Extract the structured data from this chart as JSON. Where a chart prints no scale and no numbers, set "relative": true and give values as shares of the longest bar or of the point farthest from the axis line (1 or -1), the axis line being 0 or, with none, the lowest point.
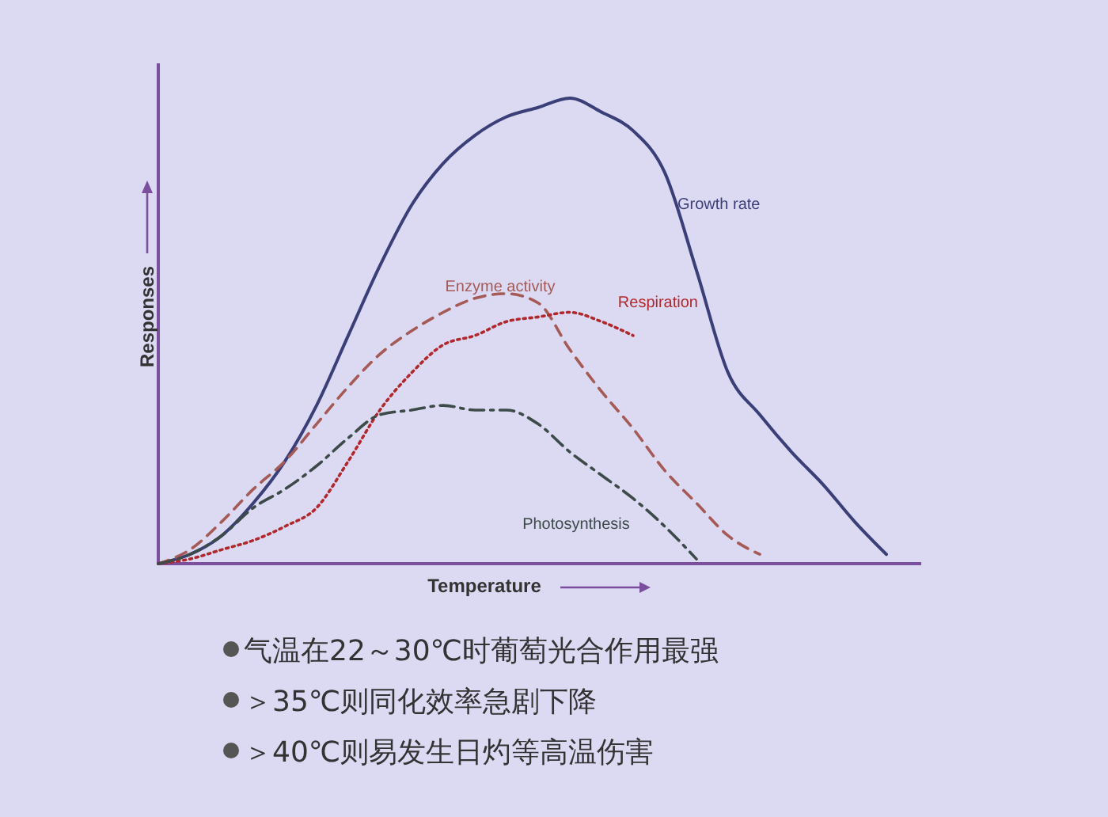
{
  "chart_data": {
    "type": "line",
    "relative": true,
    "xlabel": "Temperature",
    "ylabel": "Responses",
    "categories": [
      null,
      null,
      null,
      null,
      null,
      null,
      null,
      null,
      null,
      null,
      null,
      null,
      null,
      null,
      null,
      null,
      null,
      null,
      null,
      null,
      null,
      null,
      null,
      null
    ],
    "series": [
      {
        "name": "Growth rate",
        "color": "#3b3f78",
        "line_style": "solid",
        "values": [
          0,
          0.02,
          0.06,
          0.13,
          0.22,
          0.34,
          0.49,
          0.64,
          0.77,
          0.86,
          0.92,
          0.96,
          0.98,
          1,
          0.97,
          0.93,
          0.84,
          0.63,
          0.41,
          0.32,
          0.24,
          0.17,
          0.09,
          0.02
        ]
      },
      {
        "name": "Enzyme activity",
        "color": "#a65a55",
        "line_style": "dashed",
        "values": [
          0,
          0.03,
          0.09,
          0.16,
          0.22,
          0.3,
          0.38,
          0.45,
          0.5,
          0.54,
          0.57,
          0.58,
          0.56,
          0.46,
          0.37,
          0.29,
          0.2,
          0.13,
          0.06,
          0.02,
          null,
          null,
          null,
          null
        ]
      },
      {
        "name": "Respiration",
        "color": "#b0282c",
        "line_style": "dotted",
        "values": [
          0,
          0.01,
          0.03,
          0.05,
          0.08,
          0.12,
          0.22,
          0.33,
          0.41,
          0.47,
          0.49,
          0.52,
          0.53,
          0.54,
          0.52,
          0.49,
          null,
          null,
          null,
          null,
          null,
          null,
          null,
          null
        ]
      },
      {
        "name": "Photosynthesis",
        "color": "#3c4a48",
        "line_style": "dashdot",
        "values": [
          0,
          0.02,
          0.06,
          0.12,
          0.16,
          0.21,
          0.27,
          0.32,
          0.33,
          0.34,
          0.33,
          0.33,
          0.3,
          0.24,
          0.19,
          0.14,
          0.08,
          0.01,
          null,
          null,
          null,
          null,
          null,
          null
        ]
      }
    ],
    "annotations": [
      "气温在22～30℃时葡萄光合作用最强",
      "＞35℃则同化效率急剧下降",
      "＞40℃则易发生日灼等高温伤害"
    ]
  }
}
